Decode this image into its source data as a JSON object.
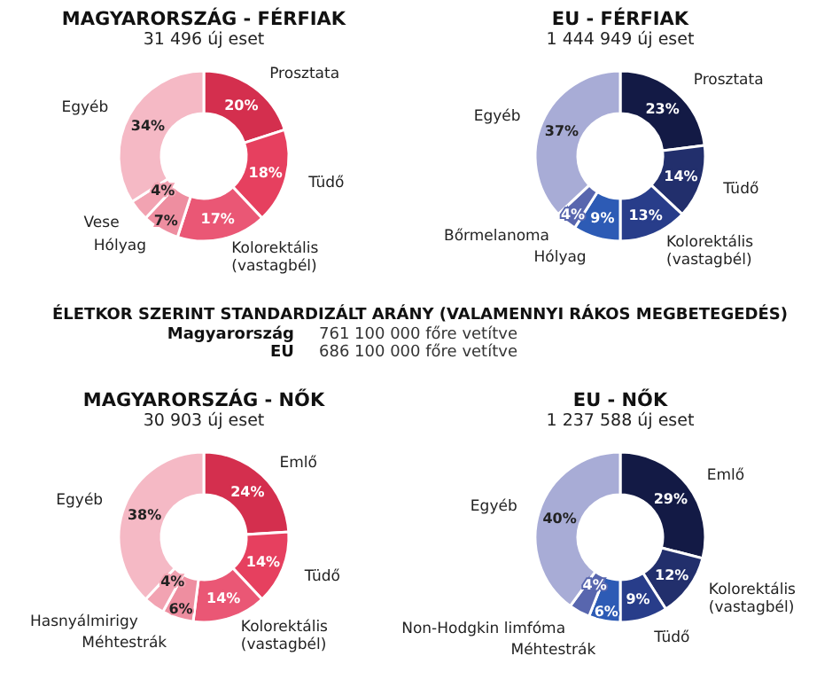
{
  "chart_data": [
    {
      "type": "donut",
      "title": "MAGYARORSZÁG - FÉRFIAK",
      "subtitle": "31 496 új eset",
      "categories": [
        "Prosztata",
        "Tüdő",
        "Kolorektális (vastagbél)",
        "Hólyag",
        "Vese",
        "Egyéb"
      ],
      "values": [
        20,
        18,
        17,
        7,
        4,
        34
      ],
      "value_labels": [
        "20%",
        "18%",
        "17%",
        "7%",
        "4%",
        "34%"
      ],
      "colors": [
        "#d42f4e",
        "#e6405f",
        "#ea5775",
        "#ee8ea0",
        "#f2a3b2",
        "#f5b9c5"
      ]
    },
    {
      "type": "donut",
      "title": "EU - FÉRFIAK",
      "subtitle": "1 444 949 új eset",
      "categories": [
        "Prosztata",
        "Tüdő",
        "Kolorektális (vastagbél)",
        "Hólyag",
        "Bőrmelanoma",
        "Egyéb"
      ],
      "values": [
        23,
        14,
        13,
        9,
        4,
        37
      ],
      "value_labels": [
        "23%",
        "14%",
        "13%",
        "9%",
        "4%",
        "37%"
      ],
      "colors": [
        "#131a45",
        "#222f6c",
        "#283d8a",
        "#2d5bb5",
        "#5866ae",
        "#a8acd6"
      ]
    },
    {
      "type": "other",
      "title": "ÉLETKOR SZERINT STANDARDIZÁLT ARÁNY (VALAMENNYI RÁKOS MEGBETEGEDÉS)",
      "annotations": [
        "Magyarország",
        "761 100 000 főre vetítve",
        "EU",
        "686 100 000 főre vetítve"
      ]
    },
    {
      "type": "donut",
      "title": "MAGYARORSZÁG - NŐK",
      "subtitle": "30 903 új eset",
      "categories": [
        "Emlő",
        "Tüdő",
        "Kolorektális (vastagbél)",
        "Méhtestrák",
        "Hasnyálmirigy",
        "Egyéb"
      ],
      "values": [
        24,
        14,
        14,
        6,
        4,
        38
      ],
      "value_labels": [
        "24%",
        "14%",
        "14%",
        "6%",
        "4%",
        "38%"
      ],
      "colors": [
        "#d42f4e",
        "#e6405f",
        "#ea5775",
        "#ee8ea0",
        "#f2a3b2",
        "#f5b9c5"
      ]
    },
    {
      "type": "donut",
      "title": "EU - NŐK",
      "subtitle": "1 237 588 új eset",
      "categories": [
        "Emlő",
        "Kolorektális (vastagbél)",
        "Tüdő",
        "Méhtestrák",
        "Non-Hodgkin limfóma",
        "Egyéb"
      ],
      "values": [
        29,
        12,
        9,
        6,
        4,
        40
      ],
      "value_labels": [
        "29%",
        "12%",
        "9%",
        "6%",
        "4%",
        "40%"
      ],
      "colors": [
        "#131a45",
        "#222f6c",
        "#283d8a",
        "#2d5bb5",
        "#5866ae",
        "#a8acd6"
      ]
    }
  ]
}
